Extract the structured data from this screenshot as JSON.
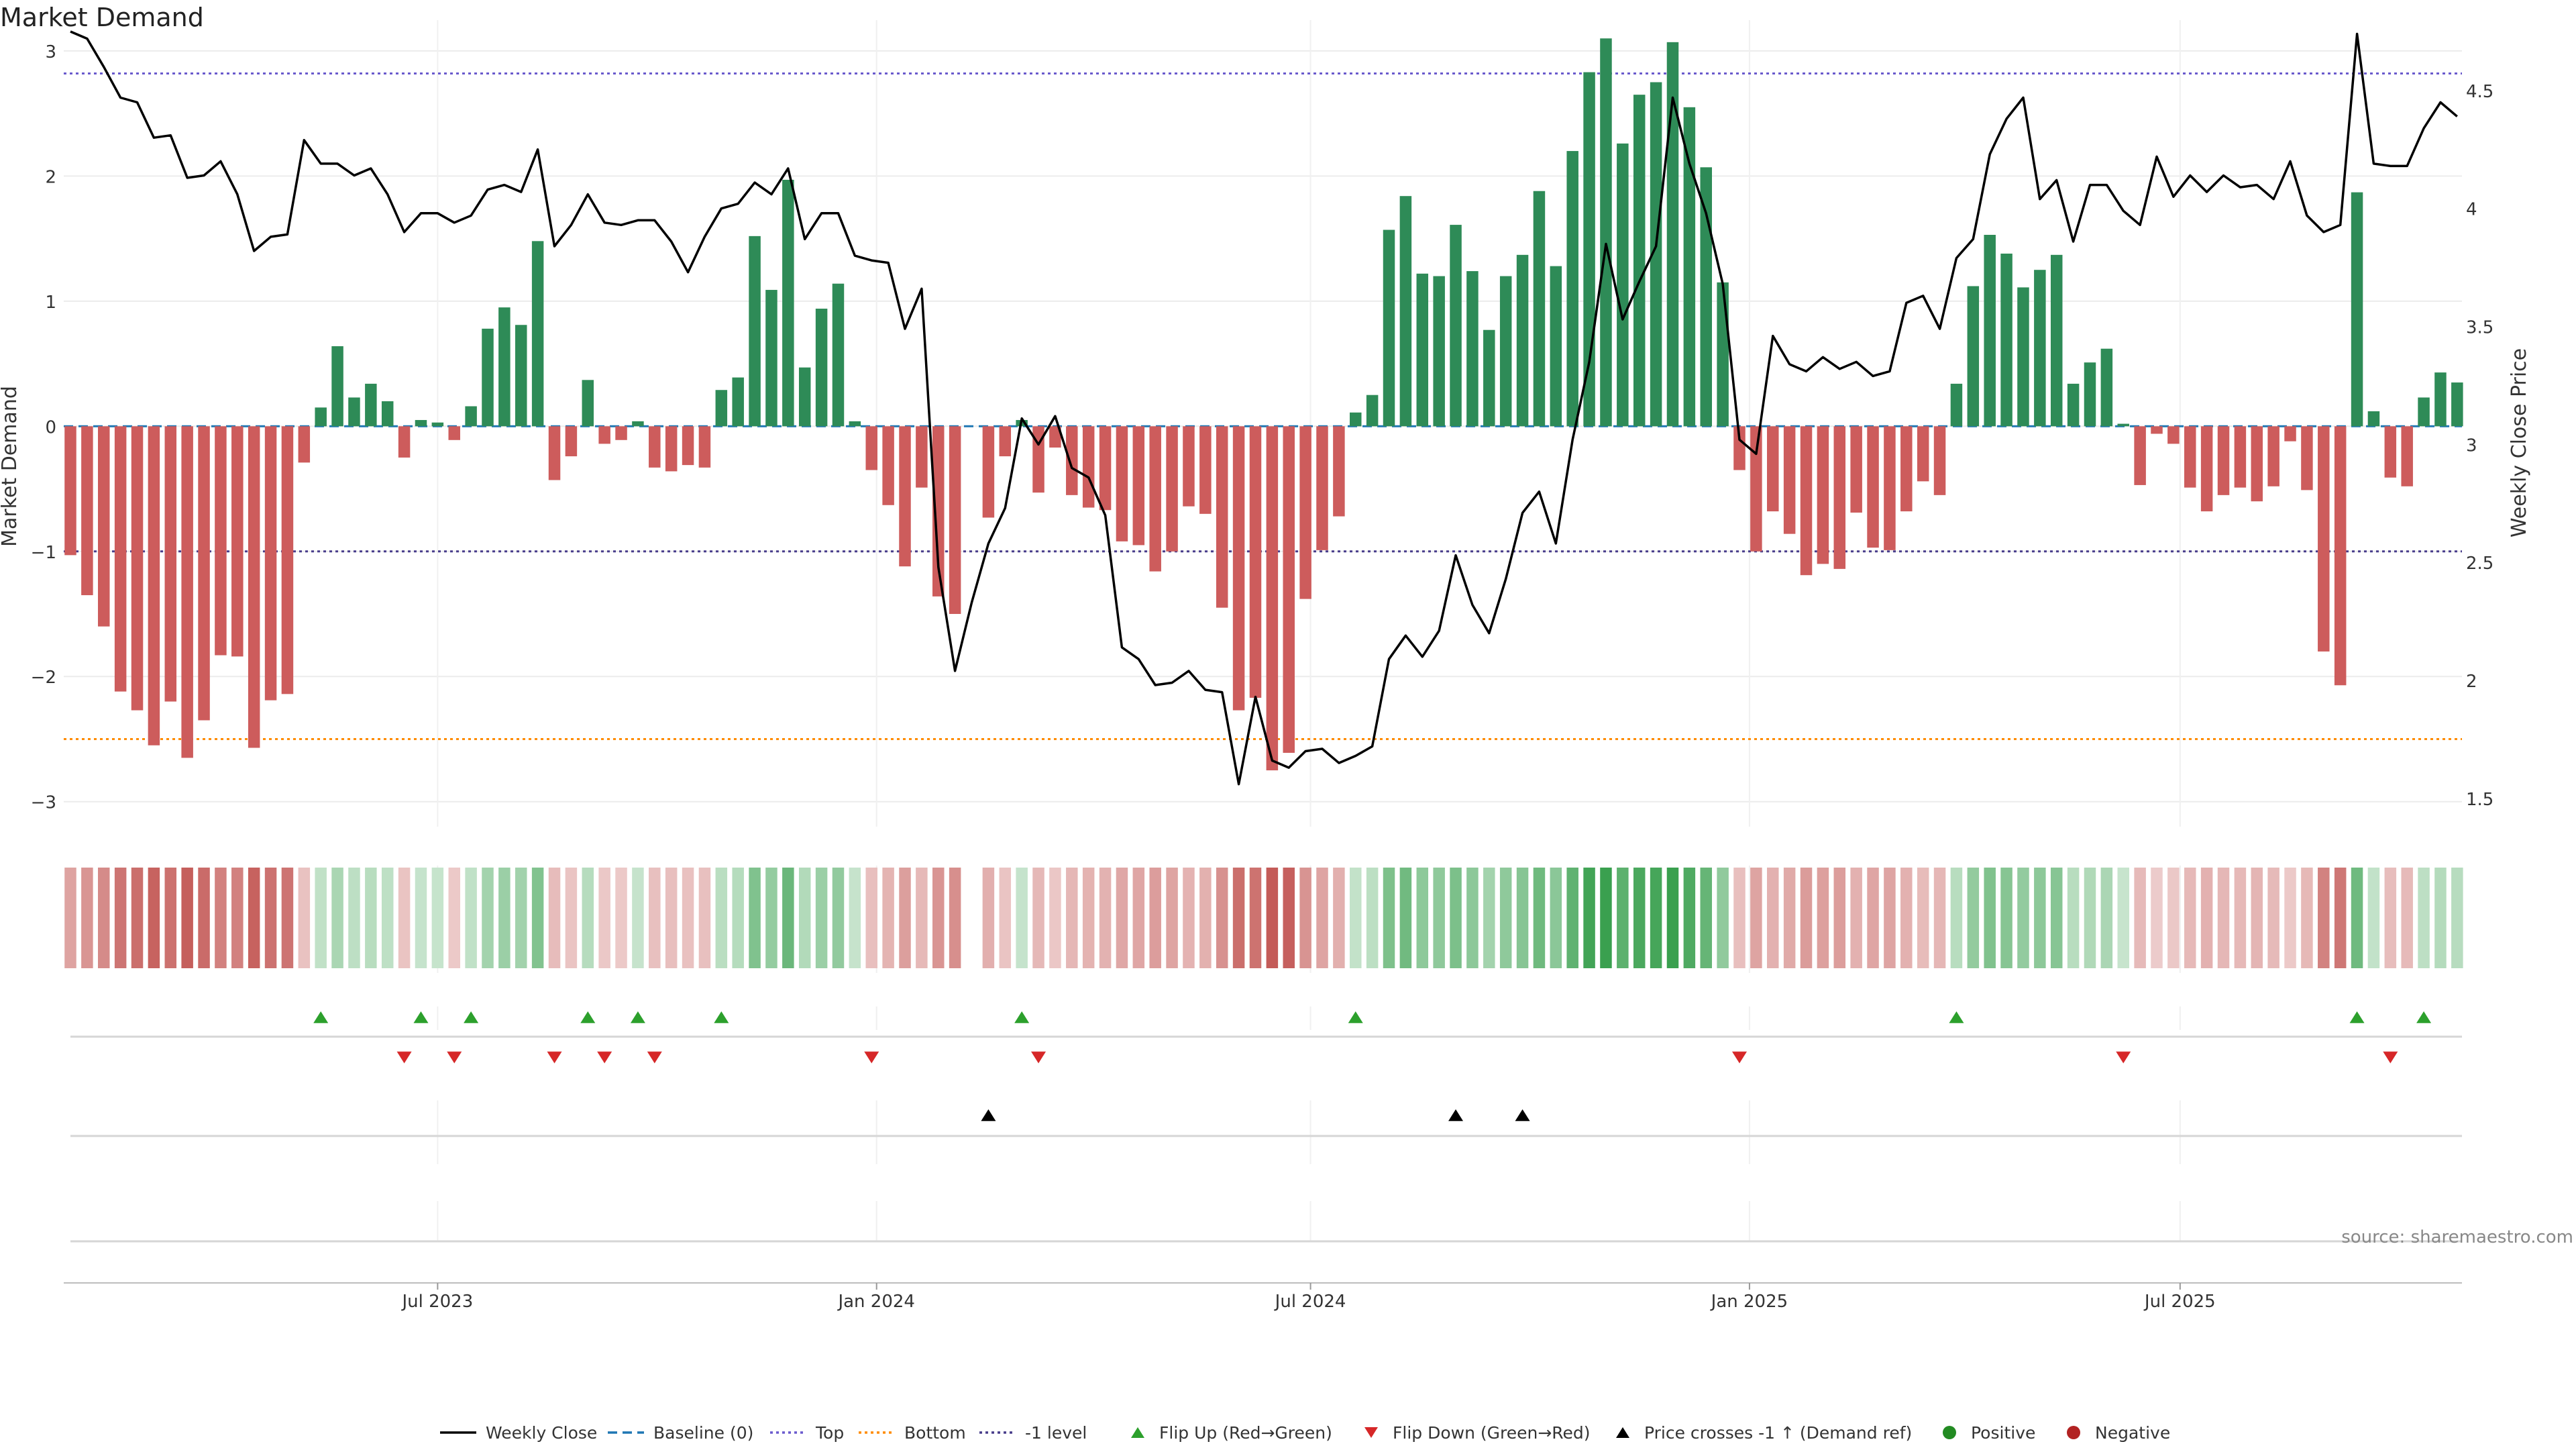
{
  "title": "Market Demand",
  "source": "source: sharemaestro.com",
  "colors": {
    "positive_bar": "#2e8b57",
    "negative_bar": "#cd5c5c",
    "price_line": "#000000",
    "baseline": "#1f77b4",
    "top_line": "#6a5acd",
    "bottom_line": "#ff8c00",
    "neg1_line": "#483d8b",
    "flip_up": "#2ca02c",
    "flip_down": "#d62728",
    "cross": "#000000",
    "positive_dot": "#228b22",
    "negative_dot": "#b22222"
  },
  "chart_data": {
    "type": "bar",
    "title": "Market Demand",
    "ylabel": "Market Demand",
    "y2label": "Weekly Close Price",
    "ylim": [
      -3.2,
      3.4
    ],
    "y2lim": [
      1.38,
      4.88
    ],
    "yticks": [
      {
        "v": 3,
        "label": "3"
      },
      {
        "v": 2,
        "label": "2"
      },
      {
        "v": 1,
        "label": "1"
      },
      {
        "v": 0,
        "label": "0"
      },
      {
        "v": -1,
        "label": "−1"
      },
      {
        "v": -2,
        "label": "−2"
      },
      {
        "v": -3,
        "label": "−3"
      }
    ],
    "y2ticks": [
      {
        "v": 4.5,
        "label": "4.5"
      },
      {
        "v": 4,
        "label": "4"
      },
      {
        "v": 3.5,
        "label": "3.5"
      },
      {
        "v": 3,
        "label": "3"
      },
      {
        "v": 2.5,
        "label": "2.5"
      },
      {
        "v": 2,
        "label": "2"
      },
      {
        "v": 1.5,
        "label": "1.5"
      }
    ],
    "xticks": [
      {
        "i": 22,
        "label": "Jul 2023"
      },
      {
        "i": 48.3,
        "label": "Jan 2024"
      },
      {
        "i": 74.3,
        "label": "Jul 2024"
      },
      {
        "i": 100.6,
        "label": "Jan 2025"
      },
      {
        "i": 126.4,
        "label": "Jul 2025"
      }
    ],
    "reference_lines": {
      "top": 2.82,
      "bottom": -2.5,
      "minus1": -1.0,
      "baseline": 0
    },
    "demand": [
      -1.03,
      -1.35,
      -1.6,
      -2.12,
      -2.27,
      -2.55,
      -2.2,
      -2.65,
      -2.35,
      -1.83,
      -1.84,
      -2.57,
      -2.19,
      -2.14,
      -0.29,
      0.15,
      0.64,
      0.23,
      0.34,
      0.2,
      -0.25,
      0.05,
      0.03,
      -0.11,
      0.16,
      0.78,
      0.95,
      0.81,
      1.48,
      -0.43,
      -0.24,
      0.37,
      -0.14,
      -0.11,
      0.04,
      -0.33,
      -0.36,
      -0.31,
      -0.33,
      0.29,
      0.39,
      1.52,
      1.09,
      1.97,
      0.47,
      0.94,
      1.14,
      0.04,
      -0.35,
      -0.63,
      -1.12,
      -0.49,
      -1.36,
      -1.5,
      0.0,
      -0.73,
      -0.24,
      0.05,
      -0.53,
      -0.17,
      -0.55,
      -0.65,
      -0.67,
      -0.92,
      -0.95,
      -1.16,
      -1.0,
      -0.64,
      -0.7,
      -1.45,
      -2.27,
      -2.17,
      -2.75,
      -2.61,
      -1.38,
      -0.99,
      -0.72,
      0.11,
      0.25,
      1.57,
      1.84,
      1.22,
      1.2,
      1.61,
      1.24,
      0.77,
      1.2,
      1.37,
      1.88,
      1.28,
      2.2,
      2.83,
      3.1,
      2.26,
      2.65,
      2.75,
      3.07,
      2.55,
      2.07,
      1.15,
      -0.35,
      -1.0,
      -0.68,
      -0.86,
      -1.19,
      -1.1,
      -1.14,
      -0.69,
      -0.97,
      -0.99,
      -0.68,
      -0.44,
      -0.55,
      0.34,
      1.12,
      1.53,
      1.38,
      1.11,
      1.25,
      1.37,
      0.34,
      0.51,
      0.62,
      0.02,
      -0.47,
      -0.06,
      -0.14,
      -0.49,
      -0.68,
      -0.55,
      -0.49,
      -0.6,
      -0.48,
      -0.12,
      -0.51,
      -1.8,
      -2.07,
      1.87,
      0.12,
      -0.41,
      -0.48,
      0.23,
      0.43,
      0.35
    ],
    "price": [
      4.75,
      4.72,
      4.6,
      4.47,
      4.45,
      4.3,
      4.31,
      4.13,
      4.14,
      4.2,
      4.06,
      3.82,
      3.88,
      3.89,
      4.29,
      4.19,
      4.19,
      4.14,
      4.17,
      4.06,
      3.9,
      3.98,
      3.98,
      3.94,
      3.97,
      4.08,
      4.1,
      4.07,
      4.25,
      3.84,
      3.93,
      4.06,
      3.94,
      3.93,
      3.95,
      3.95,
      3.86,
      3.73,
      3.88,
      4.0,
      4.02,
      4.11,
      4.06,
      4.17,
      3.87,
      3.98,
      3.98,
      3.8,
      3.78,
      3.77,
      3.49,
      3.66,
      2.48,
      2.04,
      2.33,
      2.58,
      2.73,
      3.11,
      3.0,
      3.12,
      2.9,
      2.86,
      2.7,
      2.14,
      2.09,
      1.98,
      1.99,
      2.04,
      1.96,
      1.95,
      1.56,
      1.93,
      1.66,
      1.63,
      1.7,
      1.71,
      1.65,
      1.68,
      1.72,
      2.09,
      2.19,
      2.1,
      2.21,
      2.53,
      2.32,
      2.2,
      2.43,
      2.71,
      2.8,
      2.58,
      3.02,
      3.35,
      3.85,
      3.53,
      3.69,
      3.84,
      4.47,
      4.19,
      3.98,
      3.68,
      3.02,
      2.96,
      3.46,
      3.34,
      3.31,
      3.37,
      3.32,
      3.35,
      3.29,
      3.31,
      3.6,
      3.63,
      3.49,
      3.79,
      3.87,
      4.23,
      4.38,
      4.47,
      4.04,
      4.12,
      3.86,
      4.1,
      4.1,
      3.99,
      3.93,
      4.22,
      4.05,
      4.14,
      4.07,
      4.14,
      4.09,
      4.1,
      4.04,
      4.2,
      3.97,
      3.9,
      3.93,
      4.74,
      4.19,
      4.18,
      4.18,
      4.34,
      4.45,
      4.39
    ],
    "heat_gaps": [
      54
    ],
    "flip_up": [
      15,
      21,
      24,
      31,
      34,
      39,
      57,
      77,
      113,
      137,
      141
    ],
    "flip_down": [
      20,
      23,
      29,
      32,
      35,
      48,
      58,
      100,
      123,
      139
    ],
    "price_cross": [
      55,
      83,
      87
    ],
    "legend": [
      {
        "key": "line_solid",
        "label": "Weekly Close"
      },
      {
        "key": "line_dash_blue",
        "label": "Baseline (0)"
      },
      {
        "key": "line_dot_purple",
        "label": "Top"
      },
      {
        "key": "line_dot_orange",
        "label": "Bottom"
      },
      {
        "key": "line_dot_navy",
        "label": "-1 level"
      },
      {
        "key": "tri_up_green",
        "label": "Flip Up (Red→Green)"
      },
      {
        "key": "tri_down_red",
        "label": "Flip Down (Green→Red)"
      },
      {
        "key": "tri_up_black",
        "label": "Price crosses -1 ↑ (Demand ref)"
      },
      {
        "key": "dot_green",
        "label": "Positive"
      },
      {
        "key": "dot_red",
        "label": "Negative"
      }
    ]
  }
}
